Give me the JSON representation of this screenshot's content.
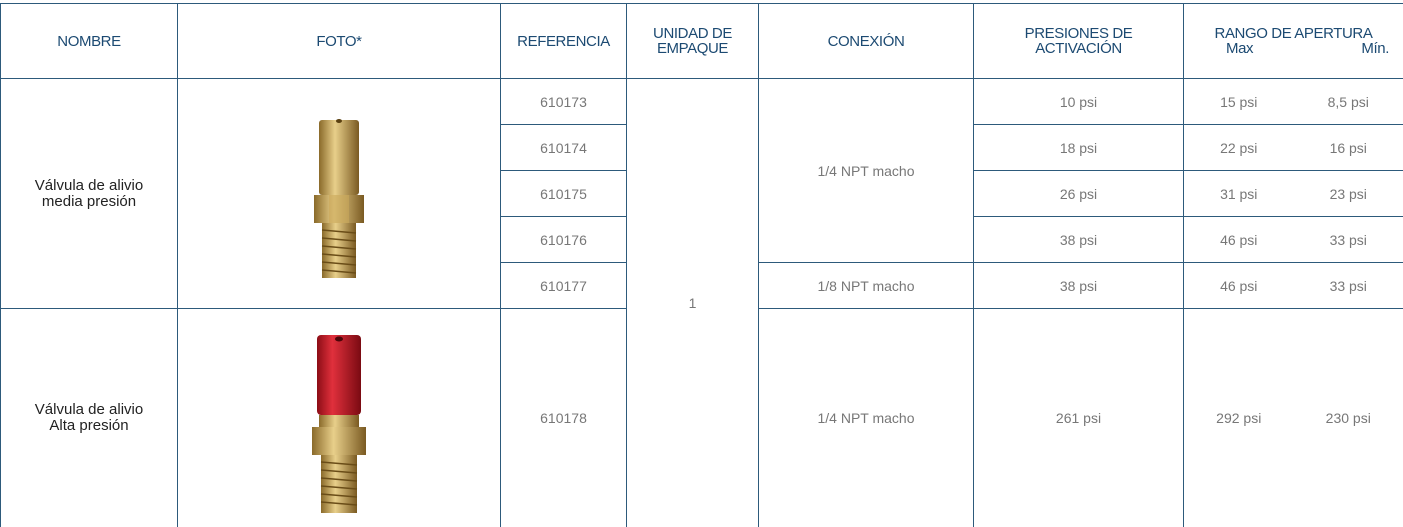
{
  "header": {
    "nombre": "NOMBRE",
    "foto": "FOTO*",
    "referencia": "REFERENCIA",
    "unidad": "UNIDAD DE\nEMPAQUE",
    "conexion": "CONEXIÓN",
    "presiones": "PRESIONES DE\nACTIVACIÓN",
    "rango": "RANGO DE APERTURA",
    "max": "Max",
    "min": "Mín."
  },
  "unit": "1",
  "products": [
    {
      "name": "Válvula de alivio\nmedia presión",
      "rows": [
        {
          "reference": "610173",
          "connection": "1/4 NPT macho",
          "activation": "10 psi",
          "max": "15 psi",
          "min": "8,5 psi"
        },
        {
          "reference": "610174",
          "activation": "18 psi",
          "max": "22 psi",
          "min": "16 psi"
        },
        {
          "reference": "610175",
          "activation": "26 psi",
          "max": "31 psi",
          "min": "23 psi"
        },
        {
          "reference": "610176",
          "activation": "38 psi",
          "max": "46 psi",
          "min": "33 psi"
        },
        {
          "reference": "610177",
          "connection": "1/8 NPT macho",
          "activation": "38 psi",
          "max": "46 psi",
          "min": "33 psi"
        }
      ]
    },
    {
      "name": "Válvula de alivio\nAlta presión",
      "rows": [
        {
          "reference": "610178",
          "connection": "1/4 NPT macho",
          "activation": "261 psi",
          "max": "292 psi",
          "min": "230 psi"
        }
      ]
    }
  ]
}
